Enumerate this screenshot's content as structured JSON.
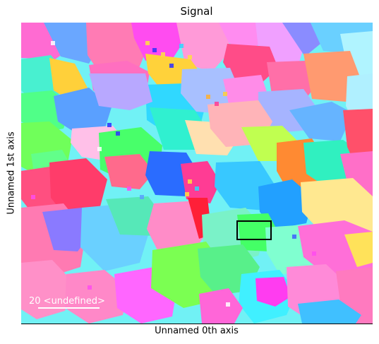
{
  "title": "Signal",
  "xlabel": "Unnamed 0th axis",
  "ylabel": "Unnamed 1st axis",
  "scalebar": {
    "label": "20 <undefined>"
  }
}
